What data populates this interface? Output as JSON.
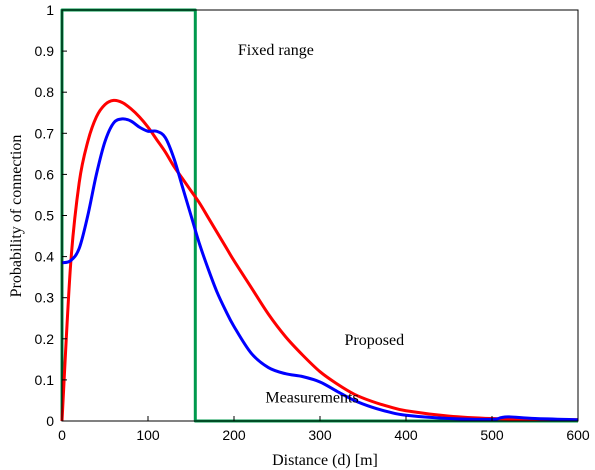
{
  "chart_data": {
    "type": "line",
    "xlabel": "Distance (d) [m]",
    "ylabel": "Probability of connection",
    "xlim": [
      0,
      600
    ],
    "ylim": [
      0,
      1
    ],
    "x_ticks": [
      0,
      100,
      200,
      300,
      400,
      500,
      600
    ],
    "y_ticks": [
      0,
      0.1,
      0.2,
      0.3,
      0.4,
      0.5,
      0.6,
      0.7,
      0.8,
      0.9,
      1
    ],
    "grid": false,
    "series": [
      {
        "name": "Fixed range",
        "color": "#00994d",
        "x": [
          0,
          0,
          155,
          155,
          600
        ],
        "y": [
          0,
          1,
          1,
          0,
          0
        ]
      },
      {
        "name": "Proposed",
        "color": "#ff0000",
        "x": [
          0,
          10,
          20,
          30,
          40,
          50,
          60,
          70,
          80,
          90,
          100,
          110,
          120,
          130,
          140,
          150,
          160,
          170,
          180,
          190,
          200,
          220,
          240,
          260,
          280,
          300,
          320,
          340,
          360,
          380,
          400,
          450,
          500,
          550,
          600
        ],
        "y": [
          0,
          0.38,
          0.58,
          0.68,
          0.74,
          0.77,
          0.78,
          0.775,
          0.76,
          0.74,
          0.715,
          0.685,
          0.655,
          0.62,
          0.59,
          0.56,
          0.53,
          0.495,
          0.46,
          0.425,
          0.39,
          0.325,
          0.26,
          0.205,
          0.16,
          0.12,
          0.09,
          0.065,
          0.048,
          0.035,
          0.025,
          0.012,
          0.006,
          0.004,
          0.003
        ]
      },
      {
        "name": "Measurements",
        "color": "#0000ff",
        "x": [
          0,
          10,
          20,
          30,
          40,
          50,
          60,
          70,
          80,
          90,
          100,
          110,
          120,
          130,
          140,
          150,
          160,
          170,
          180,
          190,
          200,
          220,
          240,
          260,
          280,
          300,
          320,
          340,
          360,
          380,
          400,
          450,
          500,
          510,
          520,
          550,
          600
        ],
        "y": [
          0.385,
          0.39,
          0.42,
          0.5,
          0.6,
          0.68,
          0.725,
          0.735,
          0.73,
          0.715,
          0.705,
          0.705,
          0.69,
          0.64,
          0.57,
          0.5,
          0.43,
          0.37,
          0.315,
          0.27,
          0.23,
          0.165,
          0.13,
          0.115,
          0.108,
          0.095,
          0.072,
          0.05,
          0.034,
          0.022,
          0.014,
          0.006,
          0.004,
          0.008,
          0.01,
          0.006,
          0.003
        ]
      }
    ],
    "annotations": [
      {
        "text": "Fixed range",
        "x": 158,
        "y": 0.905
      },
      {
        "text": "Proposed",
        "x": 282,
        "y": 0.2
      },
      {
        "text": "Measurements",
        "x": 190,
        "y": 0.06
      }
    ]
  }
}
